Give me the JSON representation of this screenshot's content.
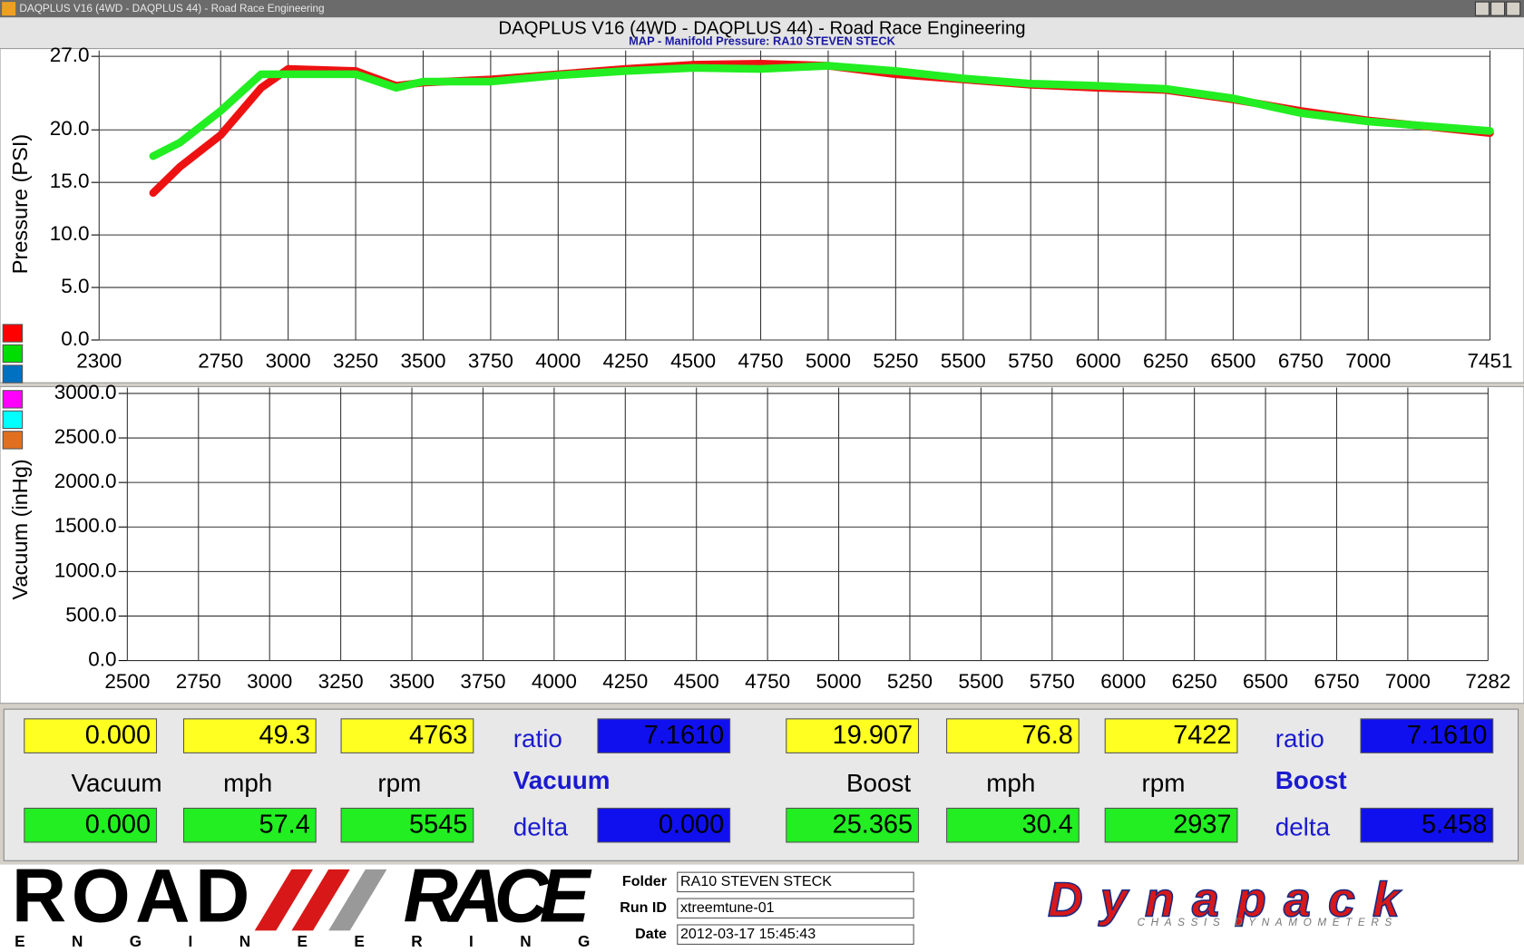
{
  "window": {
    "title": "DAQPLUS V16 (4WD - DAQPLUS 44) - Road Race Engineering"
  },
  "header": {
    "title": "DAQPLUS V16 (4WD - DAQPLUS 44) - Road Race Engineering",
    "subtitle": "MAP - Manifold Pressure: RA10 STEVEN STECK"
  },
  "charts": [
    {
      "type": "line",
      "ylabel": "Pressure (PSI)",
      "x": [
        2500,
        2600,
        2750,
        2900,
        3000,
        3250,
        3400,
        3500,
        3750,
        4000,
        4250,
        4500,
        4750,
        5000,
        5250,
        5500,
        5750,
        6000,
        6250,
        6500,
        6750,
        7000,
        7451
      ],
      "series": [
        {
          "color": "#ee1111",
          "values": [
            14,
            16.5,
            19.5,
            24,
            25.8,
            25.6,
            24.2,
            24.5,
            24.8,
            25.3,
            25.8,
            26.2,
            26.3,
            26.1,
            25.3,
            24.8,
            24.3,
            24.0,
            23.8,
            22.9,
            21.8,
            20.9,
            19.7
          ]
        },
        {
          "color": "#22ee22",
          "values": [
            17.5,
            18.8,
            21.8,
            25.3,
            25.3,
            25.3,
            24.0,
            24.6,
            24.6,
            25.2,
            25.6,
            25.9,
            25.8,
            26.1,
            25.6,
            24.9,
            24.4,
            24.2,
            23.9,
            23.0,
            21.6,
            20.8,
            19.9
          ]
        }
      ],
      "legend_colors": [
        "#ff0000",
        "#00dd00",
        "#0070c0"
      ],
      "xlim": [
        2300,
        7451
      ],
      "xticks": [
        2300,
        2750,
        3000,
        3250,
        3500,
        3750,
        4000,
        4250,
        4500,
        4750,
        5000,
        5250,
        5500,
        5750,
        6000,
        6250,
        6500,
        6750,
        7000,
        7451
      ],
      "ylim": [
        0,
        27
      ],
      "yticks": [
        {
          "value": 0,
          "label": "0.0"
        },
        {
          "value": 5,
          "label": "5.0"
        },
        {
          "value": 10,
          "label": "10.0"
        },
        {
          "value": 15,
          "label": "15.0"
        },
        {
          "value": 20,
          "label": "20.0"
        },
        {
          "value": 27,
          "label": "27.0"
        }
      ],
      "grid": true
    },
    {
      "type": "line",
      "ylabel": "Vacuum (inHg)",
      "x": [],
      "series": [],
      "legend_colors": [
        "#ff00ff",
        "#00ffff",
        "#e07020"
      ],
      "xlim": [
        2500,
        7282
      ],
      "xticks": [
        2500,
        2750,
        3000,
        3250,
        3500,
        3750,
        4000,
        4250,
        4500,
        4750,
        5000,
        5250,
        5500,
        5750,
        6000,
        6250,
        6500,
        6750,
        7000,
        7282
      ],
      "ylim": [
        0,
        3000
      ],
      "yticks": [
        {
          "value": 0,
          "label": "0.0"
        },
        {
          "value": 500,
          "label": "500.0"
        },
        {
          "value": 1000,
          "label": "1000.0"
        },
        {
          "value": 1500,
          "label": "1500.0"
        },
        {
          "value": 2000,
          "label": "2000.0"
        },
        {
          "value": 2500,
          "label": "2500.0"
        },
        {
          "value": 3000,
          "label": "3000.0"
        }
      ],
      "grid": true
    }
  ],
  "readouts": [
    {
      "top": [
        "0.000",
        "49.3",
        "4763"
      ],
      "labels": [
        "Vacuum",
        "mph",
        "rpm"
      ],
      "bottom": [
        "0.000",
        "57.4",
        "5545"
      ],
      "ratio_label": "ratio",
      "ratio": "7.1610",
      "group": "Vacuum",
      "delta_label": "delta",
      "delta": "0.000"
    },
    {
      "top": [
        "19.907",
        "76.8",
        "7422"
      ],
      "labels": [
        "Boost",
        "mph",
        "rpm"
      ],
      "bottom": [
        "25.365",
        "30.4",
        "2937"
      ],
      "ratio_label": "ratio",
      "ratio": "7.1610",
      "group": "Boost",
      "delta_label": "delta",
      "delta": "5.458"
    }
  ],
  "footer": {
    "logo": {
      "word1": "ROAD",
      "word2": "RACE",
      "tagline": "ENGINEERING"
    },
    "fields": [
      {
        "label": "Folder",
        "value": "RA10 STEVEN STECK"
      },
      {
        "label": "Run ID",
        "value": "xtreemtune-01"
      },
      {
        "label": "Date",
        "value": "2012-03-17 15:45:43"
      }
    ],
    "brand": {
      "name": "Dynapack",
      "tagline": "CHASSIS DYNAMOMETERS"
    }
  }
}
